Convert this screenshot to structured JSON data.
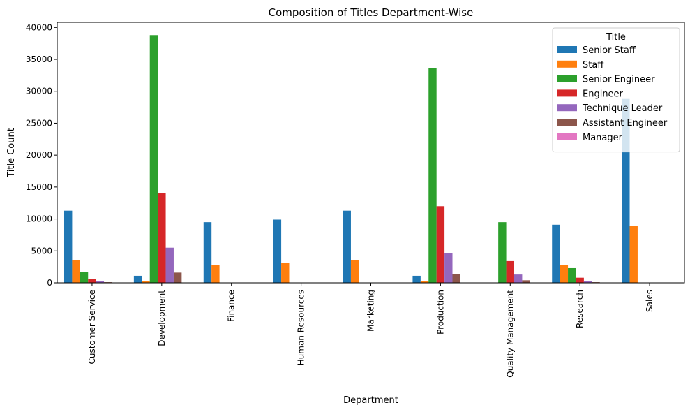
{
  "chart_data": {
    "type": "bar",
    "title": "Composition of Titles Department-Wise",
    "xlabel": "Department",
    "ylabel": "Title Count",
    "ylim": [
      0,
      40800
    ],
    "yticks": [
      0,
      5000,
      10000,
      15000,
      20000,
      25000,
      30000,
      35000,
      40000
    ],
    "grid": false,
    "legend": {
      "title": "Title",
      "placement": "top-right"
    },
    "categories": [
      "Customer Service",
      "Development",
      "Finance",
      "Human Resources",
      "Marketing",
      "Production",
      "Quality Management",
      "Research",
      "Sales"
    ],
    "series": [
      {
        "name": "Senior Staff",
        "color": "#1f77b4",
        "values": [
          11300,
          1100,
          9500,
          9900,
          11300,
          1100,
          0,
          9100,
          28800
        ]
      },
      {
        "name": "Staff",
        "color": "#ff7f0e",
        "values": [
          3600,
          300,
          2800,
          3100,
          3500,
          300,
          0,
          2800,
          8900
        ]
      },
      {
        "name": "Senior Engineer",
        "color": "#2ca02c",
        "values": [
          1700,
          38800,
          0,
          0,
          0,
          33600,
          9500,
          2300,
          0
        ]
      },
      {
        "name": "Engineer",
        "color": "#d62728",
        "values": [
          600,
          14000,
          0,
          0,
          0,
          12000,
          3400,
          800,
          0
        ]
      },
      {
        "name": "Technique Leader",
        "color": "#9467bd",
        "values": [
          250,
          5500,
          0,
          0,
          0,
          4700,
          1300,
          300,
          0
        ]
      },
      {
        "name": "Assistant Engineer",
        "color": "#8c564b",
        "values": [
          100,
          1600,
          0,
          0,
          0,
          1400,
          400,
          100,
          0
        ]
      },
      {
        "name": "Manager",
        "color": "#e377c2",
        "values": [
          0,
          0,
          0,
          0,
          0,
          0,
          0,
          0,
          0
        ]
      }
    ]
  }
}
